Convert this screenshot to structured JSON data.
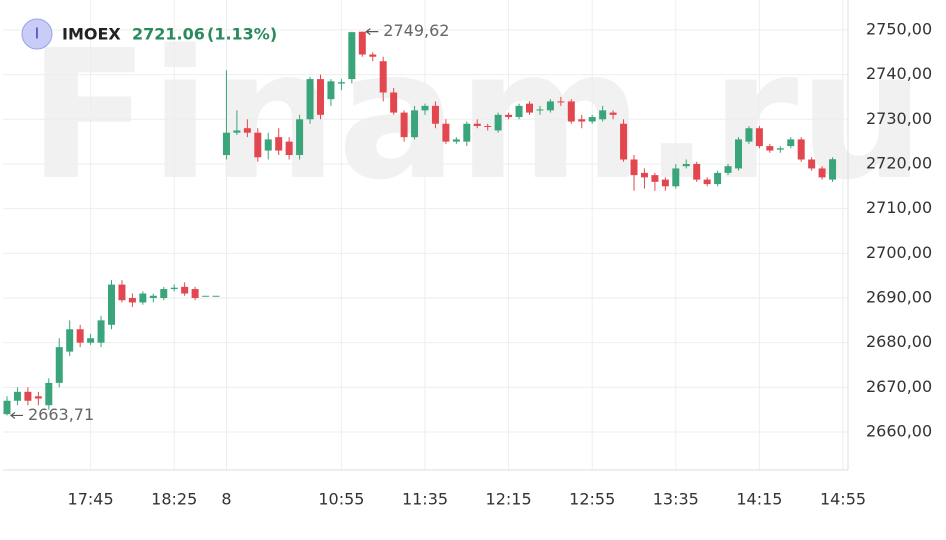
{
  "chart_data": {
    "type": "candlestick",
    "icon": "I",
    "symbol": "IMOEX",
    "price_label": "2721.06",
    "change_label": "(1.13%)",
    "watermark": "Finam.ru",
    "up_color": "#3aa57a",
    "down_color": "#e2474f",
    "grid": true,
    "ylim": [
      2651.5,
      2756.7
    ],
    "yticks": [
      {
        "value": 2660,
        "label": "2660,00"
      },
      {
        "value": 2670,
        "label": "2670,00"
      },
      {
        "value": 2680,
        "label": "2680,00"
      },
      {
        "value": 2690,
        "label": "2690,00"
      },
      {
        "value": 2700,
        "label": "2700,00"
      },
      {
        "value": 2710,
        "label": "2710,00"
      },
      {
        "value": 2720,
        "label": "2720,00"
      },
      {
        "value": 2730,
        "label": "2730,00"
      },
      {
        "value": 2740,
        "label": "2740,00"
      },
      {
        "value": 2750,
        "label": "2750,00"
      }
    ],
    "categories": [
      null,
      null,
      null,
      null,
      null,
      null,
      null,
      null,
      "17:45",
      null,
      null,
      null,
      null,
      null,
      null,
      null,
      "18:25",
      null,
      null,
      null,
      null,
      "8",
      null,
      null,
      null,
      null,
      null,
      null,
      null,
      null,
      null,
      null,
      "10:55",
      null,
      null,
      null,
      null,
      null,
      null,
      null,
      "11:35",
      null,
      null,
      null,
      null,
      null,
      null,
      null,
      "12:15",
      null,
      null,
      null,
      null,
      null,
      null,
      null,
      "12:55",
      null,
      null,
      null,
      null,
      null,
      null,
      null,
      "13:35",
      null,
      null,
      null,
      null,
      null,
      null,
      null,
      "14:15",
      null,
      null,
      null,
      null,
      null,
      null,
      null,
      "14:55"
    ],
    "open": [
      2664,
      2667,
      2669,
      2668,
      2666,
      2671,
      2678,
      2683,
      2680,
      2680,
      2684,
      2693,
      2690,
      2689,
      2690,
      2690,
      2692,
      2692.5,
      2692,
      2690.5,
      2690.5,
      2722,
      2727,
      2728,
      2727,
      2723,
      2726,
      2725,
      2722,
      2730,
      2739,
      2734.5,
      2738,
      2739,
      2749.6,
      2744.5,
      2743,
      2736,
      2731.5,
      2726,
      2732,
      2733,
      2729,
      2725,
      2725,
      2729,
      2728.5,
      2727.5,
      2731,
      2730.5,
      2733.5,
      2732,
      2732,
      2734,
      2734,
      2730,
      2729.5,
      2730,
      2731.5,
      2729,
      2721,
      2718,
      2717.5,
      2716.5,
      2715,
      2719.5,
      2720,
      2716.5,
      2715.5,
      2718,
      2719,
      2725,
      2728,
      2724,
      2723.2,
      2724,
      2725.5,
      2721,
      2719,
      2716.5,
      null
    ],
    "high": [
      2668,
      2670,
      2670,
      2669,
      2672,
      2681,
      2685,
      2684,
      2682,
      2686,
      2694,
      2694,
      2691,
      2691.5,
      2691,
      2692.5,
      2693,
      2693.5,
      2692.5,
      2690.5,
      2690.5,
      2741,
      2732,
      2730,
      2728,
      2727,
      2728,
      2726,
      2731,
      2739.5,
      2740,
      2739,
      2739,
      2749.6,
      2749.62,
      2745,
      2744,
      2737,
      2732,
      2733,
      2733.5,
      2734,
      2730,
      2726,
      2729.5,
      2730,
      2729,
      2731.5,
      2731.5,
      2733.5,
      2734,
      2733,
      2734.5,
      2735,
      2734.5,
      2731,
      2731,
      2733,
      2732,
      2730,
      2722,
      2719,
      2718,
      2717,
      2720,
      2721,
      2720.5,
      2717,
      2718.5,
      2720,
      2726,
      2728.5,
      2728.5,
      2724.5,
      2724,
      2726,
      2726,
      2721.5,
      2719.5,
      2721.5,
      null
    ],
    "low": [
      2663.71,
      2666,
      2666,
      2666,
      2665,
      2670,
      2677,
      2679,
      2679.5,
      2679,
      2683,
      2689,
      2688,
      2688.5,
      2689,
      2689.5,
      2691.5,
      2690.5,
      2689.5,
      2690.5,
      2690.5,
      2721,
      2726.5,
      2726,
      2720.5,
      2721,
      2722,
      2721,
      2721,
      2729,
      2730,
      2733,
      2736.5,
      2738,
      2744,
      2743,
      2734,
      2731,
      2725,
      2725.5,
      2731,
      2728,
      2724.5,
      2724.5,
      2724,
      2728,
      2727.5,
      2727,
      2730,
      2730,
      2731,
      2731,
      2731.5,
      2733,
      2729,
      2728,
      2729,
      2729.5,
      2730,
      2720.5,
      2714,
      2714.5,
      2714,
      2714,
      2714.5,
      2719,
      2716,
      2715,
      2715,
      2717.5,
      2718.5,
      2724.5,
      2723.5,
      2722.5,
      2722.5,
      2723.5,
      2720.5,
      2718.5,
      2716.5,
      2716,
      null
    ],
    "close": [
      2667,
      2669,
      2667,
      2667.5,
      2671,
      2679,
      2683,
      2680,
      2681,
      2685,
      2693,
      2689.5,
      2689,
      2691,
      2690.5,
      2692,
      2692.3,
      2691,
      2690,
      2690.5,
      2690.5,
      2727,
      2727.5,
      2727,
      2721.5,
      2725.5,
      2723,
      2722,
      2730,
      2739,
      2731,
      2738.5,
      2738.3,
      2749.5,
      2744.5,
      2744,
      2736,
      2731.5,
      2726,
      2732,
      2733,
      2729,
      2725,
      2725.5,
      2729,
      2728.5,
      2728.3,
      2731,
      2730.5,
      2733,
      2731.5,
      2732.2,
      2734,
      2733.8,
      2729.5,
      2729.5,
      2730.5,
      2732,
      2731,
      2721,
      2717.5,
      2717,
      2716,
      2715,
      2719,
      2720,
      2716.5,
      2715.5,
      2718,
      2719.5,
      2725.5,
      2728,
      2724,
      2723,
      2723.5,
      2725.5,
      2721,
      2719,
      2717,
      2721.06,
      null
    ],
    "annotations": [
      {
        "value": 2749.62,
        "label": "2749,62"
      },
      {
        "value": 2663.71,
        "label": "2663,71"
      }
    ]
  }
}
